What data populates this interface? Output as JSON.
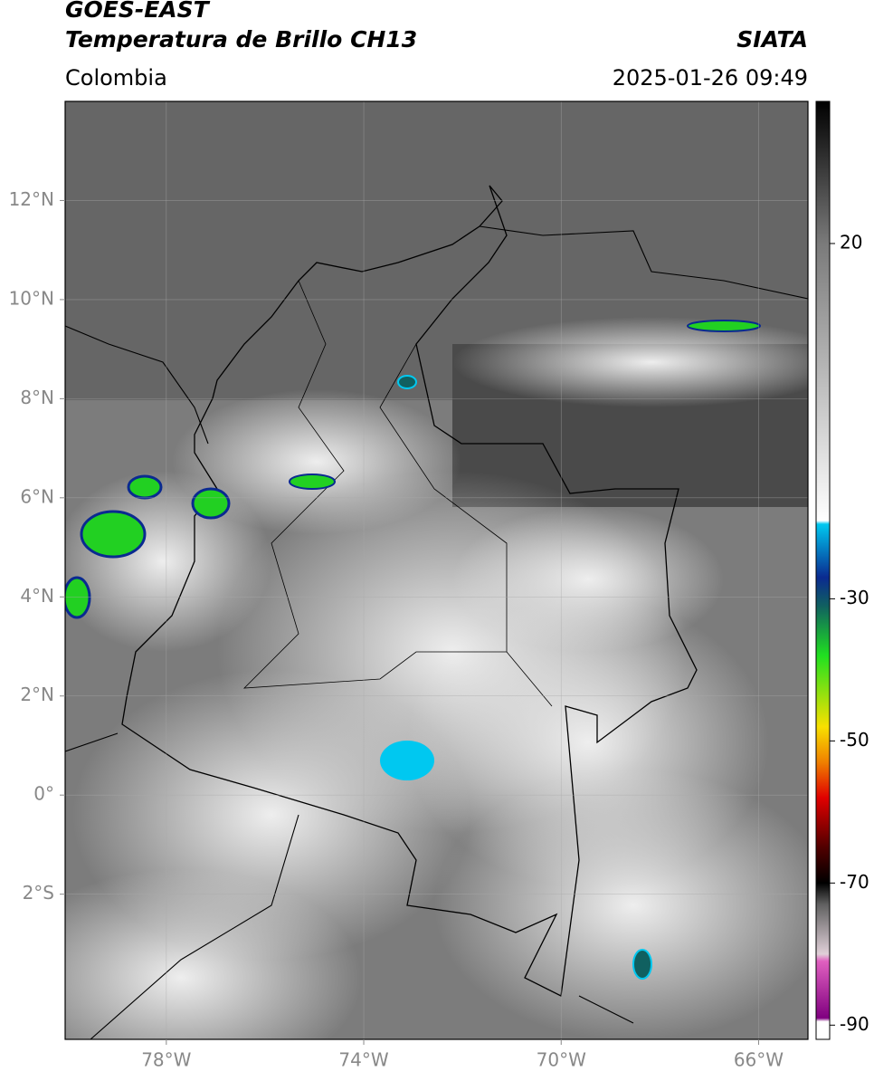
{
  "header": {
    "title": "GOES-EAST",
    "subtitle": "Temperatura de Brillo CH13",
    "source": "SIATA",
    "region": "Colombia",
    "timestamp": "2025-01-26 09:49"
  },
  "map": {
    "lon_range": [
      -80.05,
      -65
    ],
    "lat_range": [
      -4.93,
      14
    ],
    "grid": true,
    "lon_ticks": [
      {
        "value": -78,
        "label": "78°W"
      },
      {
        "value": -74,
        "label": "74°W"
      },
      {
        "value": -70,
        "label": "70°W"
      },
      {
        "value": -66,
        "label": "66°W"
      }
    ],
    "lat_ticks": [
      {
        "value": 12,
        "label": "12°N"
      },
      {
        "value": 10,
        "label": "10°N"
      },
      {
        "value": 8,
        "label": "8°N"
      },
      {
        "value": 6,
        "label": "6°N"
      },
      {
        "value": 4,
        "label": "4°N"
      },
      {
        "value": 2,
        "label": "2°N"
      },
      {
        "value": 0,
        "label": "0°"
      },
      {
        "value": -2,
        "label": "2°S"
      }
    ]
  },
  "colorbar": {
    "range": [
      -92,
      40
    ],
    "ticks": [
      20,
      -30,
      -50,
      -70,
      -90
    ],
    "colormap": [
      {
        "value": 40,
        "color": "#000000"
      },
      {
        "value": 20,
        "color": "#7a7a7a"
      },
      {
        "value": -19,
        "color": "#ffffff"
      },
      {
        "value": -19.5,
        "color": "#00c8f0"
      },
      {
        "value": -27,
        "color": "#0a2a90"
      },
      {
        "value": -31,
        "color": "#106060"
      },
      {
        "value": -38,
        "color": "#20e020"
      },
      {
        "value": -48,
        "color": "#f8e000"
      },
      {
        "value": -53,
        "color": "#f08000"
      },
      {
        "value": -58,
        "color": "#e00000"
      },
      {
        "value": -65,
        "color": "#500000"
      },
      {
        "value": -70,
        "color": "#000000"
      },
      {
        "value": -73,
        "color": "#606060"
      },
      {
        "value": -80,
        "color": "#e0d0d8"
      },
      {
        "value": -81,
        "color": "#e060c0"
      },
      {
        "value": -89,
        "color": "#800080"
      },
      {
        "value": -89.5,
        "color": "#ffffff"
      }
    ]
  }
}
